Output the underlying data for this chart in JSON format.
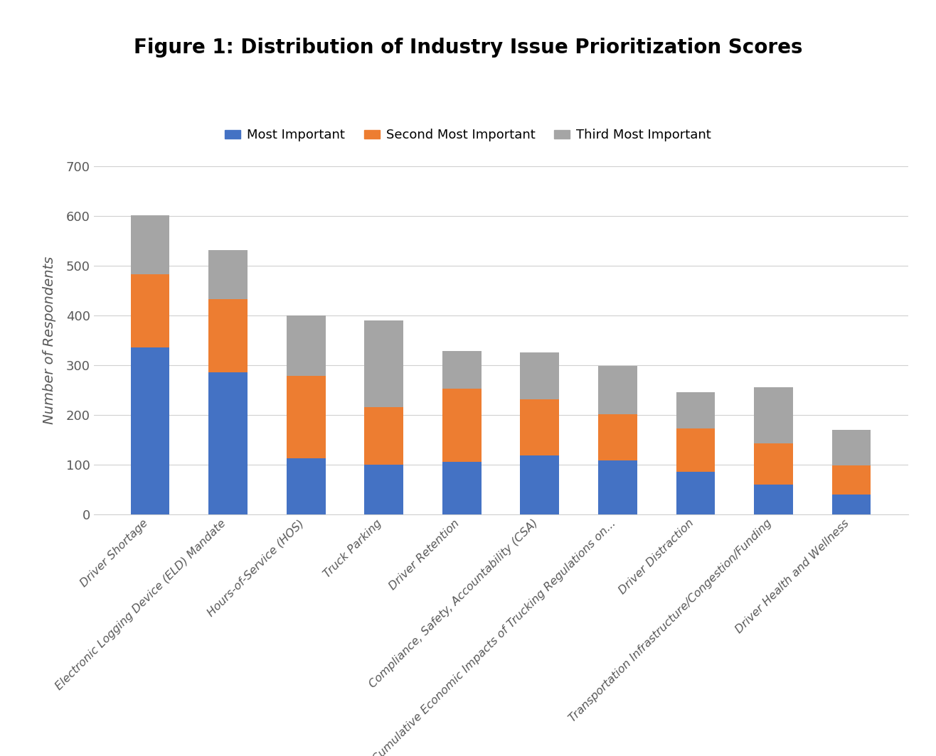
{
  "title": "Figure 1: Distribution of Industry Issue Prioritization Scores",
  "ylabel": "Number of Respondents",
  "categories": [
    "Driver Shortage",
    "Electronic Logging Device (ELD) Mandate",
    "Hours-of-Service (HOS)",
    "Truck Parking",
    "Driver Retention",
    "Compliance, Safety, Accountability (CSA)",
    "Cumulative Economic Impacts of Trucking Regulations on...",
    "Driver Distraction",
    "Transportation Infrastructure/Congestion/Funding",
    "Driver Health and Wellness"
  ],
  "most_important": [
    335,
    285,
    113,
    100,
    105,
    118,
    108,
    85,
    60,
    40
  ],
  "second_important": [
    148,
    148,
    165,
    115,
    148,
    113,
    93,
    88,
    83,
    58
  ],
  "third_important": [
    118,
    98,
    122,
    175,
    75,
    95,
    97,
    73,
    113,
    72
  ],
  "colors": {
    "most": "#4472C4",
    "second": "#ED7D31",
    "third": "#A5A5A5"
  },
  "ylim": [
    0,
    700
  ],
  "yticks": [
    0,
    100,
    200,
    300,
    400,
    500,
    600,
    700
  ],
  "background_color": "#FFFFFF",
  "grid_color": "#D0D0D0",
  "title_fontsize": 20,
  "axis_label_fontsize": 14,
  "tick_fontsize": 13,
  "legend_fontsize": 13
}
